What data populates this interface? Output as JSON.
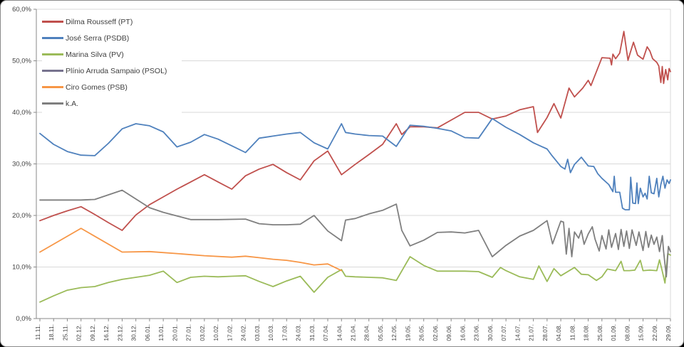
{
  "figure": {
    "background": "#ffffff",
    "frame_border_color": "#8a8a8a",
    "gridline_color": "#d9d9d9",
    "axis_line_color": "#898989",
    "tick_color": "#898989",
    "axis_text_color": "#404040"
  },
  "chart_data": {
    "type": "line",
    "title": "",
    "xlabel": "",
    "ylabel": "",
    "grid": true,
    "legend_position": "top-left-inside",
    "ylim": [
      0,
      60
    ],
    "y_tick_step": 10,
    "y_tick_labels": [
      "0,0%",
      "10,0%",
      "20,0%",
      "30,0%",
      "40,0%",
      "50,0%",
      "60,0%"
    ],
    "x_tick_labels": [
      "11.11.",
      "18.11.",
      "25.11.",
      "02.12.",
      "09.12.",
      "16.12.",
      "23.12.",
      "30.12.",
      "06.01.",
      "13.01.",
      "20.01.",
      "27.01.",
      "03.02.",
      "10.02.",
      "17.02.",
      "24.02.",
      "03.03.",
      "10.03.",
      "17.03.",
      "24.03.",
      "31.03.",
      "07.04.",
      "14.04.",
      "21.04.",
      "28.04.",
      "05.05.",
      "12.05.",
      "19.05.",
      "26.05.",
      "02.06.",
      "09.06.",
      "16.06.",
      "23.06.",
      "30.06.",
      "07.07.",
      "14.07.",
      "21.07.",
      "28.07.",
      "04.08.",
      "11.08.",
      "18.08.",
      "25.08.",
      "01.09.",
      "08.09.",
      "15.09.",
      "22.09.",
      "29.09."
    ],
    "series": [
      {
        "name": "Dilma Rousseff (PT)",
        "color": "#C0504D",
        "points": [
          [
            0,
            19
          ],
          [
            1,
            20
          ],
          [
            2,
            20.9
          ],
          [
            3,
            21.7
          ],
          [
            4,
            20.2
          ],
          [
            5,
            18.6
          ],
          [
            6,
            17.1
          ],
          [
            7,
            20.1
          ],
          [
            8,
            22.1
          ],
          [
            9,
            23.6
          ],
          [
            10,
            25.1
          ],
          [
            11,
            26.5
          ],
          [
            12,
            27.9
          ],
          [
            13,
            26.5
          ],
          [
            14,
            25.1
          ],
          [
            15,
            27.7
          ],
          [
            16,
            29
          ],
          [
            17,
            29.9
          ],
          [
            18,
            28.3
          ],
          [
            19,
            26.9
          ],
          [
            20,
            30.6
          ],
          [
            21,
            32.5
          ],
          [
            22,
            27.9
          ],
          [
            23,
            29.9
          ],
          [
            24,
            31.8
          ],
          [
            25,
            33.8
          ],
          [
            26,
            37.8
          ],
          [
            26.4,
            35.7
          ],
          [
            27,
            37.2
          ],
          [
            28,
            37.2
          ],
          [
            29,
            37
          ],
          [
            30,
            38.5
          ],
          [
            31,
            40
          ],
          [
            32,
            40
          ],
          [
            33,
            38.7
          ],
          [
            34,
            39.3
          ],
          [
            35,
            40.5
          ],
          [
            36,
            41.1
          ],
          [
            36.3,
            36.1
          ],
          [
            37,
            39
          ],
          [
            37.5,
            41.7
          ],
          [
            38,
            38.9
          ],
          [
            38.6,
            44.7
          ],
          [
            39,
            43
          ],
          [
            39.6,
            44.7
          ],
          [
            40,
            46.2
          ],
          [
            40.2,
            45.2
          ],
          [
            41,
            50.6
          ],
          [
            41.6,
            50.5
          ],
          [
            41.7,
            49.2
          ],
          [
            41.8,
            51.3
          ],
          [
            42,
            50.4
          ],
          [
            42.3,
            51.5
          ],
          [
            42.6,
            55.7
          ],
          [
            42.8,
            52
          ],
          [
            42.9,
            50.1
          ],
          [
            43,
            51
          ],
          [
            43.3,
            53.6
          ],
          [
            43.6,
            51.1
          ],
          [
            44,
            50.3
          ],
          [
            44.3,
            52.7
          ],
          [
            44.5,
            51.9
          ],
          [
            44.7,
            50.4
          ],
          [
            45,
            49.7
          ],
          [
            45.15,
            49
          ],
          [
            45.3,
            45.8
          ],
          [
            45.4,
            48.9
          ],
          [
            45.5,
            45.6
          ],
          [
            45.65,
            48.3
          ],
          [
            45.8,
            46.3
          ],
          [
            45.9,
            48.5
          ],
          [
            46,
            47.9
          ]
        ]
      },
      {
        "name": "José Serra (PSDB)",
        "color": "#4F81BD",
        "points": [
          [
            0,
            35.9
          ],
          [
            1,
            33.8
          ],
          [
            2,
            32.4
          ],
          [
            3,
            31.7
          ],
          [
            4,
            31.6
          ],
          [
            5,
            34
          ],
          [
            6,
            36.8
          ],
          [
            7,
            37.8
          ],
          [
            8,
            37.4
          ],
          [
            9,
            36.2
          ],
          [
            10,
            33.3
          ],
          [
            11,
            34.2
          ],
          [
            12,
            35.7
          ],
          [
            13,
            34.8
          ],
          [
            14,
            33.5
          ],
          [
            15,
            32.2
          ],
          [
            16,
            35
          ],
          [
            17,
            35.4
          ],
          [
            18,
            35.8
          ],
          [
            19,
            36.1
          ],
          [
            20,
            34.1
          ],
          [
            21,
            32.9
          ],
          [
            22,
            37.8
          ],
          [
            22.3,
            36.1
          ],
          [
            23,
            35.8
          ],
          [
            24,
            35.5
          ],
          [
            25,
            35.4
          ],
          [
            26,
            33.4
          ],
          [
            27,
            37.5
          ],
          [
            28,
            37.3
          ],
          [
            29,
            36.9
          ],
          [
            30,
            36.4
          ],
          [
            31,
            35.1
          ],
          [
            32,
            35
          ],
          [
            33,
            38.8
          ],
          [
            34,
            37.1
          ],
          [
            35,
            35.7
          ],
          [
            36,
            34.1
          ],
          [
            37,
            32.9
          ],
          [
            37.3,
            31.8
          ],
          [
            38,
            29.5
          ],
          [
            38.3,
            29
          ],
          [
            38.5,
            30.9
          ],
          [
            38.7,
            28.3
          ],
          [
            39,
            29.9
          ],
          [
            39.5,
            31.3
          ],
          [
            40,
            29.6
          ],
          [
            40.4,
            29.5
          ],
          [
            40.7,
            28.1
          ],
          [
            41,
            27.2
          ],
          [
            41.5,
            26
          ],
          [
            41.8,
            24.6
          ],
          [
            41.9,
            27.6
          ],
          [
            42,
            24.5
          ],
          [
            42.3,
            24.5
          ],
          [
            42.5,
            21.4
          ],
          [
            42.7,
            21.1
          ],
          [
            43,
            21.1
          ],
          [
            43.1,
            27.4
          ],
          [
            43.25,
            22.4
          ],
          [
            43.45,
            22.3
          ],
          [
            43.55,
            26.3
          ],
          [
            43.65,
            22.3
          ],
          [
            43.8,
            25.3
          ],
          [
            44,
            23.6
          ],
          [
            44.15,
            24.3
          ],
          [
            44.3,
            23.2
          ],
          [
            44.45,
            27.6
          ],
          [
            44.6,
            24.4
          ],
          [
            44.8,
            24.2
          ],
          [
            45,
            27.2
          ],
          [
            45.15,
            23.6
          ],
          [
            45.3,
            26
          ],
          [
            45.45,
            27.6
          ],
          [
            45.6,
            25.3
          ],
          [
            45.75,
            26.9
          ],
          [
            45.9,
            26.2
          ],
          [
            46,
            26.9
          ]
        ]
      },
      {
        "name": "Marina Silva (PV)",
        "color": "#9BBB59",
        "points": [
          [
            0,
            3.2
          ],
          [
            1,
            4.4
          ],
          [
            2,
            5.5
          ],
          [
            3,
            6
          ],
          [
            4,
            6.2
          ],
          [
            5,
            7
          ],
          [
            6,
            7.6
          ],
          [
            7,
            8
          ],
          [
            8,
            8.4
          ],
          [
            9,
            9.2
          ],
          [
            10,
            7
          ],
          [
            11,
            8
          ],
          [
            12,
            8.2
          ],
          [
            13,
            8.1
          ],
          [
            14,
            8.2
          ],
          [
            15,
            8.3
          ],
          [
            16,
            7.2
          ],
          [
            17,
            6.2
          ],
          [
            18,
            7.3
          ],
          [
            19,
            8.2
          ],
          [
            20,
            5.1
          ],
          [
            21,
            8
          ],
          [
            22,
            9.5
          ],
          [
            22.3,
            8.2
          ],
          [
            23,
            8.1
          ],
          [
            24,
            8
          ],
          [
            25,
            7.9
          ],
          [
            26,
            7.4
          ],
          [
            27,
            12
          ],
          [
            28,
            10.3
          ],
          [
            29,
            9.2
          ],
          [
            30,
            9.2
          ],
          [
            31,
            9.2
          ],
          [
            32,
            9.1
          ],
          [
            33,
            8
          ],
          [
            33.6,
            9.9
          ],
          [
            34,
            9.3
          ],
          [
            35,
            8.1
          ],
          [
            36,
            7.6
          ],
          [
            36.4,
            10.2
          ],
          [
            37,
            7.2
          ],
          [
            37.5,
            9.7
          ],
          [
            38,
            8.3
          ],
          [
            39,
            9.9
          ],
          [
            39.5,
            8.6
          ],
          [
            40,
            8.5
          ],
          [
            40.6,
            7.4
          ],
          [
            41,
            8.1
          ],
          [
            41.4,
            9.6
          ],
          [
            42,
            9.3
          ],
          [
            42.4,
            11.1
          ],
          [
            42.6,
            9.3
          ],
          [
            43,
            9.3
          ],
          [
            43.4,
            9.4
          ],
          [
            43.8,
            11.3
          ],
          [
            44,
            9.3
          ],
          [
            44.5,
            9.4
          ],
          [
            45,
            9.3
          ],
          [
            45.2,
            11.4
          ],
          [
            45.4,
            9.2
          ],
          [
            45.6,
            6.9
          ],
          [
            45.8,
            12.6
          ],
          [
            46,
            12.3
          ]
        ]
      },
      {
        "name": "Plínio Arruda Sampaio (PSOL)",
        "color": "#77738e",
        "points": []
      },
      {
        "name": "Ciro Gomes (PSB)",
        "color": "#F79646",
        "points": [
          [
            0,
            12.9
          ],
          [
            3,
            17.5
          ],
          [
            6,
            12.9
          ],
          [
            8,
            13
          ],
          [
            10,
            12.6
          ],
          [
            12,
            12.2
          ],
          [
            14,
            11.9
          ],
          [
            15,
            12.1
          ],
          [
            16,
            11.8
          ],
          [
            17,
            11.5
          ],
          [
            18,
            11.3
          ],
          [
            19,
            10.9
          ],
          [
            20,
            10.4
          ],
          [
            21,
            10.6
          ],
          [
            22,
            9.3
          ]
        ]
      },
      {
        "name": "k.A.",
        "color": "#7F7F7F",
        "points": [
          [
            0,
            23
          ],
          [
            3,
            23
          ],
          [
            4,
            23.1
          ],
          [
            6,
            24.9
          ],
          [
            8,
            21.5
          ],
          [
            9,
            20.6
          ],
          [
            11,
            19.2
          ],
          [
            13,
            19.2
          ],
          [
            15,
            19.3
          ],
          [
            16,
            18.4
          ],
          [
            17,
            18.2
          ],
          [
            18,
            18.2
          ],
          [
            19,
            18.3
          ],
          [
            20,
            20
          ],
          [
            21,
            17
          ],
          [
            22,
            15.1
          ],
          [
            22.3,
            19.1
          ],
          [
            23,
            19.4
          ],
          [
            24,
            20.3
          ],
          [
            25,
            21
          ],
          [
            26,
            22.2
          ],
          [
            26.4,
            17.1
          ],
          [
            27,
            14.1
          ],
          [
            28,
            15.2
          ],
          [
            29,
            16.7
          ],
          [
            30,
            16.8
          ],
          [
            31,
            16.6
          ],
          [
            32,
            17.1
          ],
          [
            33,
            12
          ],
          [
            34,
            14.2
          ],
          [
            35,
            16
          ],
          [
            36,
            17.1
          ],
          [
            37,
            19
          ],
          [
            37.4,
            14.5
          ],
          [
            38,
            18.9
          ],
          [
            38.2,
            18.7
          ],
          [
            38.4,
            12.5
          ],
          [
            38.6,
            17.5
          ],
          [
            38.8,
            12
          ],
          [
            39,
            16.8
          ],
          [
            39.3,
            15.6
          ],
          [
            39.5,
            17.1
          ],
          [
            39.7,
            14.4
          ],
          [
            40,
            16.4
          ],
          [
            40.3,
            17.8
          ],
          [
            40.5,
            15.4
          ],
          [
            40.8,
            13.1
          ],
          [
            41,
            16.1
          ],
          [
            41.3,
            13.5
          ],
          [
            41.5,
            17.2
          ],
          [
            41.7,
            13.8
          ],
          [
            42,
            16.5
          ],
          [
            42.2,
            13.4
          ],
          [
            42.4,
            17.3
          ],
          [
            42.6,
            14
          ],
          [
            42.8,
            17
          ],
          [
            43,
            13.6
          ],
          [
            43.2,
            17.2
          ],
          [
            43.5,
            14.2
          ],
          [
            43.7,
            16.8
          ],
          [
            44,
            13.2
          ],
          [
            44.2,
            16.9
          ],
          [
            44.4,
            13.8
          ],
          [
            44.6,
            16.2
          ],
          [
            44.8,
            14.4
          ],
          [
            45,
            15.8
          ],
          [
            45.2,
            13
          ],
          [
            45.4,
            16.1
          ],
          [
            45.5,
            13
          ],
          [
            45.7,
            8.1
          ],
          [
            45.85,
            14
          ],
          [
            46,
            13
          ]
        ]
      }
    ]
  }
}
